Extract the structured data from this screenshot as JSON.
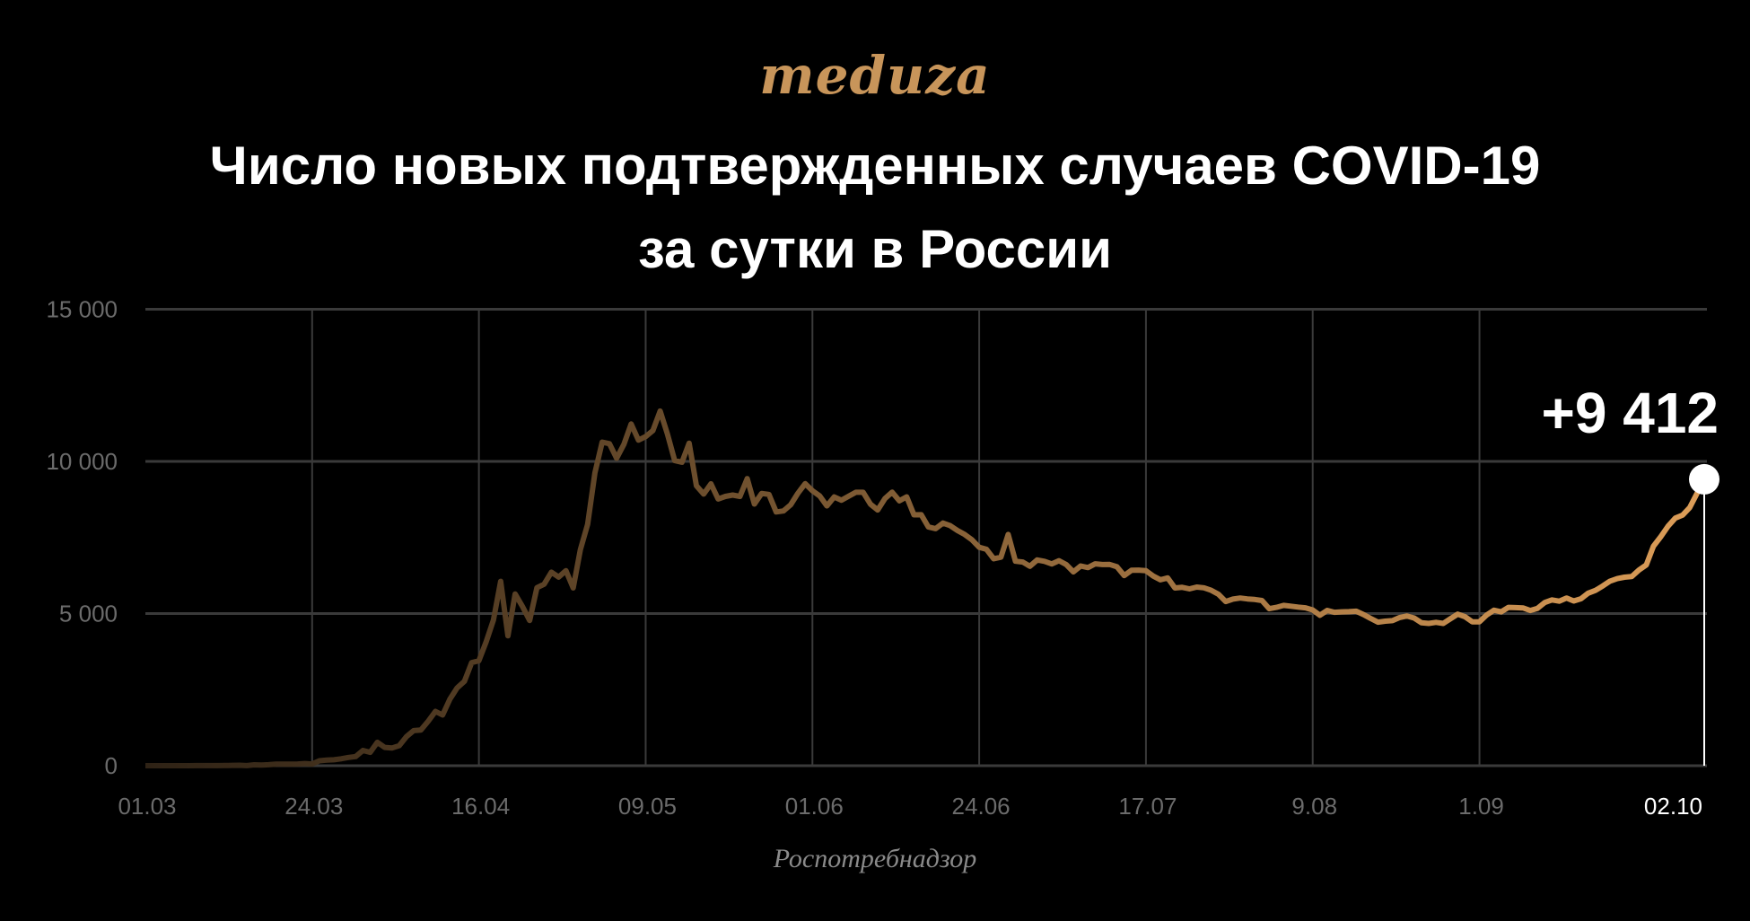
{
  "logo": "meduza",
  "title_line1": "Число новых подтвержденных случаев COVID-19",
  "title_line2": "за сутки в России",
  "source": "Роспотребнадзор",
  "colors": {
    "line_start": "#2e2215",
    "line_end": "#dc9d58",
    "grid": "#3a3a3a",
    "tick": "#6b6b6b",
    "accent": "#c8955a"
  },
  "chart_data": {
    "type": "line",
    "title": "Число новых подтвержденных случаев COVID-19 за сутки в России",
    "x_start": "01.03",
    "x_end": "02.10",
    "ylim": [
      0,
      15000
    ],
    "yticks": [
      0,
      5000,
      10000,
      15000
    ],
    "ytick_labels": [
      "0",
      "5 000",
      "10 000",
      "15 000"
    ],
    "xtick_labels": [
      "01.03",
      "24.03",
      "16.04",
      "09.05",
      "01.06",
      "24.06",
      "17.07",
      "9.08",
      "1.09",
      "02.10"
    ],
    "xtick_days": [
      0,
      23,
      46,
      69,
      92,
      115,
      138,
      161,
      184,
      215
    ],
    "grid": true,
    "annotation": "+9 412",
    "last_value": 9412,
    "values": [
      0,
      0,
      1,
      0,
      1,
      0,
      0,
      4,
      3,
      3,
      2,
      6,
      11,
      14,
      4,
      29,
      20,
      33,
      52,
      54,
      53,
      57,
      71,
      57,
      163,
      182,
      196,
      228,
      270,
      302,
      501,
      440,
      771,
      601,
      582,
      658,
      954,
      1154,
      1175,
      1459,
      1786,
      1667,
      2186,
      2558,
      2774,
      3388,
      3448,
      4070,
      4785,
      6060,
      4268,
      5642,
      5236,
      4774,
      5849,
      5966,
      6361,
      6198,
      6411,
      5841,
      7099,
      7933,
      9623,
      10633,
      10581,
      10102,
      10559,
      11231,
      10699,
      10817,
      11012,
      11656,
      10899,
      10028,
      9974,
      10598,
      9200,
      8926,
      9263,
      8764,
      8849,
      8894,
      8849,
      9434,
      8599,
      8946,
      8915,
      8338,
      8371,
      8572,
      8952,
      9268,
      9035,
      8863,
      8536,
      8831,
      8726,
      8855,
      8984,
      8985,
      8595,
      8404,
      8779,
      8987,
      8706,
      8835,
      8246,
      8248,
      7843,
      7790,
      7972,
      7889,
      7728,
      7600,
      7425,
      7176,
      7113,
      6800,
      6852,
      7600,
      6719,
      6693,
      6556,
      6760,
      6718,
      6632,
      6736,
      6611,
      6368,
      6562,
      6509,
      6635,
      6611,
      6615,
      6537,
      6248,
      6422,
      6428,
      6406,
      6234,
      6109,
      6170,
      5842,
      5862,
      5811,
      5871,
      5848,
      5765,
      5635,
      5395,
      5475,
      5509,
      5482,
      5462,
      5427,
      5159,
      5204,
      5267,
      5241,
      5212,
      5189,
      5118,
      4945,
      5102,
      5041,
      5057,
      5061,
      5076,
      4969,
      4839,
      4718,
      4748,
      4767,
      4870,
      4921,
      4852,
      4696,
      4676,
      4711,
      4676,
      4829,
      4980,
      4897,
      4729,
      4729,
      4952,
      5110,
      5056,
      5205,
      5195,
      5185,
      5099,
      5172,
      5363,
      5449,
      5406,
      5509,
      5414,
      5488,
      5670,
      5762,
      5905,
      6065,
      6148,
      6196,
      6215,
      6431,
      6595,
      7212,
      7523,
      7867,
      8135,
      8232,
      8481,
      8945,
      9412
    ]
  }
}
